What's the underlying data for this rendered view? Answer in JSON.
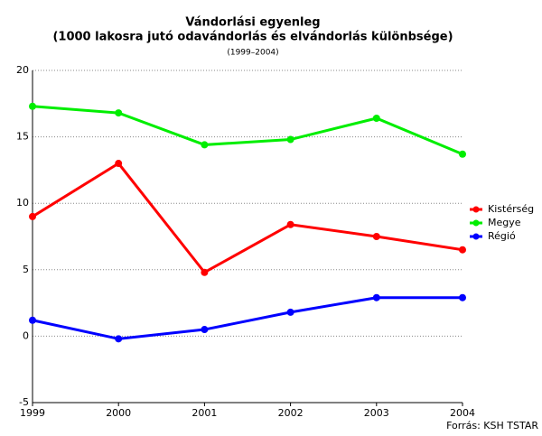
{
  "chart_data": {
    "type": "line",
    "title": "Vándorlási egyenleg",
    "subtitle": "(1000 lakosra jutó odavándorlás és elvándorlás különbsége)",
    "period": "(1999–2004)",
    "source": "Forrás: KSH TSTAR",
    "x": [
      1999,
      2000,
      2001,
      2002,
      2003,
      2004
    ],
    "xlim": [
      1999,
      2004
    ],
    "xticks": [
      1999,
      2000,
      2001,
      2002,
      2003,
      2004
    ],
    "ylim": [
      -5,
      20
    ],
    "yticks": [
      -5,
      0,
      5,
      10,
      15,
      20
    ],
    "grid": true,
    "legend": "right",
    "series": [
      {
        "name": "Kistérség",
        "color": "#ff0000",
        "values": [
          9.0,
          13.0,
          4.8,
          8.4,
          7.5,
          6.5
        ]
      },
      {
        "name": "Megye",
        "color": "#00ee00",
        "values": [
          17.3,
          16.8,
          14.4,
          14.8,
          16.4,
          13.7
        ]
      },
      {
        "name": "Régió",
        "color": "#0000ff",
        "values": [
          1.2,
          -0.2,
          0.5,
          1.8,
          2.9,
          2.9
        ]
      }
    ]
  }
}
